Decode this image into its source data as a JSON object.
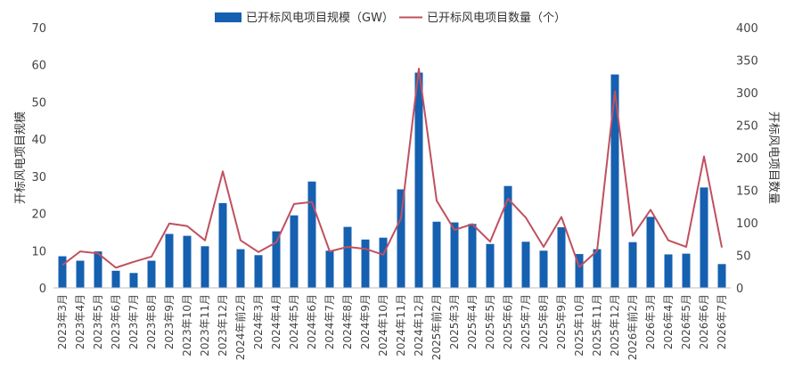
{
  "chart_data": {
    "type": "bar",
    "categories": [
      "2023年3月",
      "2023年4月",
      "2023年5月",
      "2023年6月",
      "2023年7月",
      "2023年8月",
      "2023年9月",
      "2023年10月",
      "2023年11月",
      "2023年12月",
      "2024年前2月",
      "2024年3月",
      "2024年4月",
      "2024年5月",
      "2024年6月",
      "2024年7月",
      "2024年8月",
      "2024年9月",
      "2024年10月",
      "2024年11月",
      "2024年12月",
      "2025年前2月",
      "2025年3月",
      "2025年4月",
      "2025年5月",
      "2025年6月",
      "2025年7月",
      "2025年8月",
      "2025年9月",
      "2025年10月",
      "2025年11月",
      "2025年12月",
      "2026年前2月",
      "2026年3月",
      "2026年4月",
      "2026年5月",
      "2026年6月",
      "2026年7月"
    ],
    "series": [
      {
        "name": "已开标风电项目规模（GW）",
        "type": "bar",
        "axis": "left",
        "color": "#1560b0",
        "values": [
          8.5,
          7.3,
          9.8,
          4.6,
          4.0,
          7.3,
          14.5,
          14.0,
          11.2,
          22.8,
          10.4,
          8.8,
          15.2,
          19.5,
          28.6,
          10.0,
          16.4,
          13.0,
          13.5,
          26.5,
          57.9,
          17.8,
          17.6,
          17.2,
          11.8,
          27.4,
          12.4,
          10.0,
          16.3,
          9.1,
          10.4,
          57.4,
          12.3,
          19.1,
          9.0,
          9.2,
          27.0,
          6.4
        ]
      },
      {
        "name": "已开标风电项目数量（个）",
        "type": "line",
        "axis": "right",
        "color": "#c0505f",
        "values": [
          35,
          56,
          53,
          31,
          40,
          48,
          99,
          95,
          73,
          179,
          73,
          55,
          70,
          129,
          132,
          56,
          63,
          60,
          51,
          107,
          337,
          134,
          89,
          98,
          71,
          137,
          108,
          63,
          109,
          32,
          57,
          302,
          80,
          120,
          73,
          63,
          202,
          62
        ]
      }
    ],
    "ylabel_left": "开标风电项目规模",
    "ylabel_right": "开标风电项目数量",
    "ylim_left": [
      0,
      70
    ],
    "ylim_right": [
      0,
      400
    ],
    "yticks_left": [
      0,
      10,
      20,
      30,
      40,
      50,
      60,
      70
    ],
    "yticks_right": [
      0,
      50,
      100,
      150,
      200,
      250,
      300,
      350,
      400
    ],
    "grid": false,
    "legend": "top-center"
  }
}
